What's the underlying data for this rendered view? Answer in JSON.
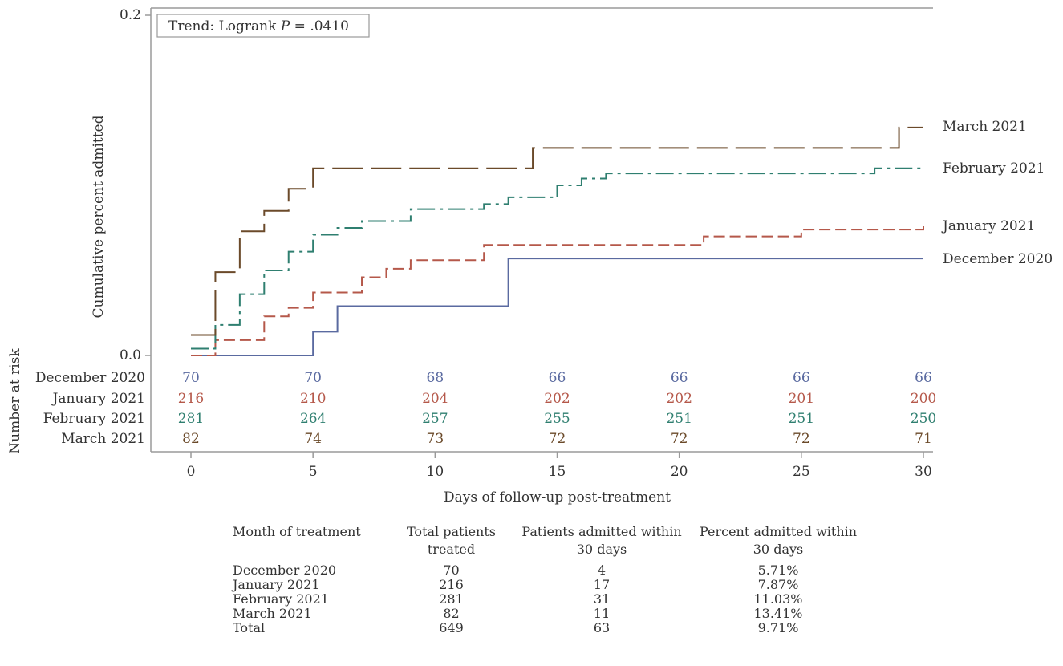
{
  "chart_data": {
    "type": "line",
    "subtype": "kaplan-meier-step",
    "ylabel": "Cumulative percent admitted",
    "xlabel": "Days of follow-up post-treatment",
    "risk_label": "Number at risk",
    "annotation": {
      "text_prefix": "Trend: Logrank ",
      "text_var": "P",
      "text_suffix": " = .0410"
    },
    "xlim": [
      0,
      30
    ],
    "ylim": [
      0,
      0.2
    ],
    "xticks": [
      0,
      5,
      10,
      15,
      20,
      25,
      30
    ],
    "xtick_labels": [
      "0",
      "5",
      "10",
      "15",
      "20",
      "25",
      "30"
    ],
    "yticks": [
      0,
      0.2
    ],
    "ytick_labels": [
      "0.0",
      "0.2"
    ],
    "grid": false,
    "series": [
      {
        "name": "December 2020",
        "color": "#5a6aa0",
        "style": "solid",
        "steps": [
          [
            0,
            0
          ],
          [
            5,
            0.014
          ],
          [
            6,
            0.029
          ],
          [
            13,
            0.057
          ],
          [
            30,
            0.057
          ]
        ],
        "at_risk": [
          "70",
          "70",
          "68",
          "66",
          "66",
          "66",
          "66"
        ]
      },
      {
        "name": "January 2021",
        "color": "#b5584a",
        "style": "short-dash",
        "steps": [
          [
            0,
            0
          ],
          [
            1,
            0.009
          ],
          [
            3,
            0.023
          ],
          [
            4,
            0.028
          ],
          [
            5,
            0.037
          ],
          [
            7,
            0.046
          ],
          [
            8,
            0.051
          ],
          [
            9,
            0.056
          ],
          [
            10,
            0.056
          ],
          [
            12,
            0.065
          ],
          [
            21,
            0.07
          ],
          [
            25,
            0.074
          ],
          [
            30,
            0.079
          ]
        ],
        "at_risk": [
          "216",
          "210",
          "204",
          "202",
          "202",
          "201",
          "200"
        ]
      },
      {
        "name": "February 2021",
        "color": "#2f7f70",
        "style": "dash-dot",
        "steps": [
          [
            0,
            0.004
          ],
          [
            1,
            0.018
          ],
          [
            2,
            0.036
          ],
          [
            3,
            0.05
          ],
          [
            4,
            0.061
          ],
          [
            5,
            0.071
          ],
          [
            6,
            0.075
          ],
          [
            7,
            0.079
          ],
          [
            9,
            0.086
          ],
          [
            12,
            0.089
          ],
          [
            13,
            0.093
          ],
          [
            15,
            0.1
          ],
          [
            16,
            0.104
          ],
          [
            17,
            0.107
          ],
          [
            28,
            0.11
          ],
          [
            30,
            0.11
          ]
        ],
        "at_risk": [
          "281",
          "264",
          "257",
          "255",
          "251",
          "251",
          "250"
        ]
      },
      {
        "name": "March 2021",
        "color": "#6b4a2a",
        "style": "long-dash",
        "steps": [
          [
            0,
            0.012
          ],
          [
            1,
            0.049
          ],
          [
            2,
            0.073
          ],
          [
            3,
            0.085
          ],
          [
            4,
            0.098
          ],
          [
            5,
            0.11
          ],
          [
            14,
            0.122
          ],
          [
            29,
            0.134
          ],
          [
            30,
            0.134
          ]
        ],
        "at_risk": [
          "82",
          "74",
          "73",
          "72",
          "72",
          "72",
          "71"
        ]
      }
    ]
  },
  "summary_table": {
    "headers": [
      [
        "Month of treatment"
      ],
      [
        "Total patients",
        "treated"
      ],
      [
        "Patients admitted within",
        "30 days"
      ],
      [
        "Percent admitted within",
        "30 days"
      ]
    ],
    "rows": [
      [
        "December 2020",
        "70",
        "4",
        "5.71%"
      ],
      [
        "January 2021",
        "216",
        "17",
        "7.87%"
      ],
      [
        "February 2021",
        "281",
        "31",
        "11.03%"
      ],
      [
        "March 2021",
        "82",
        "11",
        "13.41%"
      ],
      [
        "Total",
        "649",
        "63",
        "9.71%"
      ]
    ]
  }
}
